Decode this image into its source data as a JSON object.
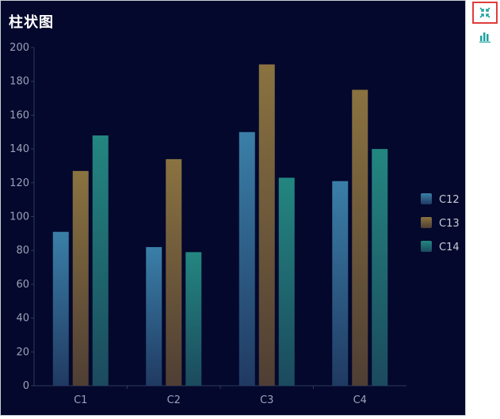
{
  "chart_data": {
    "type": "bar",
    "title": "柱状图",
    "categories": [
      "C1",
      "C2",
      "C3",
      "C4"
    ],
    "series": [
      {
        "name": "C12",
        "values": [
          91,
          82,
          150,
          121
        ],
        "color_top": "#3a7fa8",
        "color_bottom": "#203a62"
      },
      {
        "name": "C13",
        "values": [
          127,
          134,
          190,
          175
        ],
        "color_top": "#8a7240",
        "color_bottom": "#4f3e34"
      },
      {
        "name": "C14",
        "values": [
          148,
          79,
          123,
          140
        ],
        "color_top": "#238680",
        "color_bottom": "#1b4a5e"
      }
    ],
    "ylim": [
      0,
      200
    ],
    "yticks": [
      0,
      20,
      40,
      60,
      80,
      100,
      120,
      140,
      160,
      180,
      200
    ],
    "grid": false,
    "legend_position": "right"
  },
  "colors": {
    "background": "#03082c",
    "axis": "#2e3a5c",
    "tick_label": "#9aa3b8",
    "legend_text": "#c8ccd6",
    "toolbar_icon": "#1fa3a0",
    "active_border": "#e03c3c"
  },
  "toolbar": {
    "tools": [
      {
        "icon": "collapse-icon",
        "active": true
      },
      {
        "icon": "bar-chart-icon",
        "active": false
      }
    ]
  }
}
